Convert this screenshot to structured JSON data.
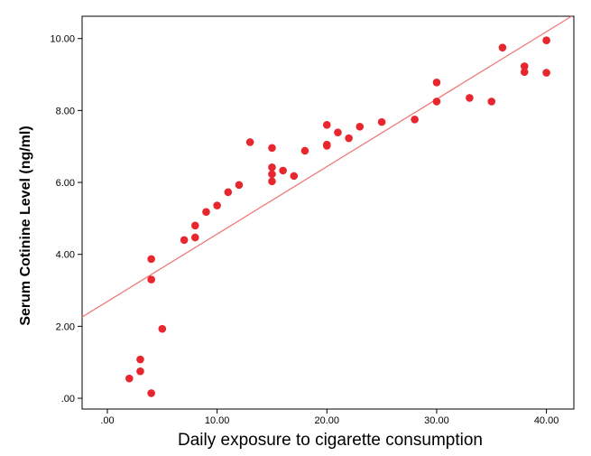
{
  "chart_data": {
    "type": "scatter",
    "title": "",
    "xlabel": "Daily exposure to cigarette consumption",
    "ylabel": "Serum Cotinine Level (ng/ml)",
    "xlim": [
      -2.3,
      42.5
    ],
    "ylim": [
      -0.3,
      10.62
    ],
    "x_ticks": [
      0,
      10,
      20,
      30,
      40
    ],
    "x_tick_labels": [
      ".00",
      "10.00",
      "20.00",
      "30.00",
      "40.00"
    ],
    "y_ticks": [
      0,
      2,
      4,
      6,
      8,
      10
    ],
    "y_tick_labels": [
      ".00",
      "2.00",
      "4.00",
      "6.00",
      "8.00",
      "10.00"
    ],
    "grid": false,
    "legend": "none",
    "marker_color": "#e8262d",
    "fit_line_color": "#ef7a7a",
    "points": [
      {
        "x": 2,
        "y": 0.55
      },
      {
        "x": 3,
        "y": 1.08
      },
      {
        "x": 3,
        "y": 0.75
      },
      {
        "x": 4,
        "y": 0.14
      },
      {
        "x": 4,
        "y": 3.3
      },
      {
        "x": 4,
        "y": 3.87
      },
      {
        "x": 5,
        "y": 1.93
      },
      {
        "x": 7,
        "y": 4.4
      },
      {
        "x": 8,
        "y": 4.8
      },
      {
        "x": 8,
        "y": 4.47
      },
      {
        "x": 9,
        "y": 5.18
      },
      {
        "x": 10,
        "y": 5.36
      },
      {
        "x": 11,
        "y": 5.73
      },
      {
        "x": 12,
        "y": 5.93
      },
      {
        "x": 13,
        "y": 7.12
      },
      {
        "x": 15,
        "y": 6.96
      },
      {
        "x": 15,
        "y": 6.42
      },
      {
        "x": 15,
        "y": 6.23
      },
      {
        "x": 15,
        "y": 6.03
      },
      {
        "x": 16,
        "y": 6.33
      },
      {
        "x": 17,
        "y": 6.18
      },
      {
        "x": 18,
        "y": 6.88
      },
      {
        "x": 20,
        "y": 7.6
      },
      {
        "x": 20,
        "y": 7.05
      },
      {
        "x": 20,
        "y": 7.02
      },
      {
        "x": 21,
        "y": 7.39
      },
      {
        "x": 22,
        "y": 7.23
      },
      {
        "x": 23,
        "y": 7.55
      },
      {
        "x": 25,
        "y": 7.68
      },
      {
        "x": 28,
        "y": 7.75
      },
      {
        "x": 30,
        "y": 8.78
      },
      {
        "x": 30,
        "y": 8.25
      },
      {
        "x": 33,
        "y": 8.35
      },
      {
        "x": 35,
        "y": 8.25
      },
      {
        "x": 36,
        "y": 9.75
      },
      {
        "x": 38,
        "y": 9.23
      },
      {
        "x": 38,
        "y": 9.07
      },
      {
        "x": 40,
        "y": 9.95
      },
      {
        "x": 40,
        "y": 9.05
      }
    ],
    "fit_line": {
      "intercept": 2.69,
      "slope": 0.1875
    }
  }
}
